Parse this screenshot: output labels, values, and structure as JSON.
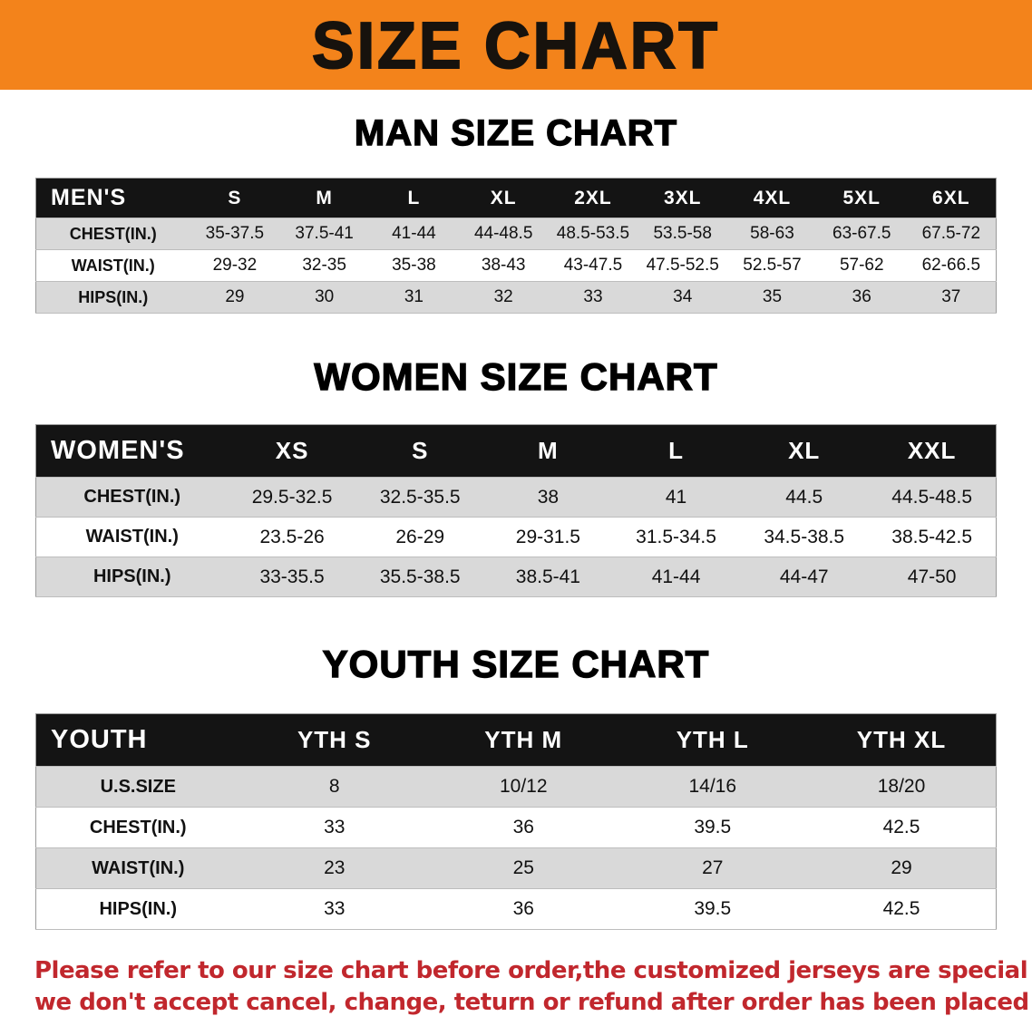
{
  "banner": {
    "title": "SIZE CHART",
    "bg_color": "#F3831B",
    "text_color": "#17120D"
  },
  "chart_data": [
    {
      "type": "table",
      "title": "MAN SIZE CHART",
      "header": [
        "MEN'S",
        "S",
        "M",
        "L",
        "XL",
        "2XL",
        "3XL",
        "4XL",
        "5XL",
        "6XL"
      ],
      "rows": [
        {
          "label": "CHEST(IN.)",
          "values": [
            "35-37.5",
            "37.5-41",
            "41-44",
            "44-48.5",
            "48.5-53.5",
            "53.5-58",
            "58-63",
            "63-67.5",
            "67.5-72"
          ]
        },
        {
          "label": "WAIST(IN.)",
          "values": [
            "29-32",
            "32-35",
            "35-38",
            "38-43",
            "43-47.5",
            "47.5-52.5",
            "52.5-57",
            "57-62",
            "62-66.5"
          ]
        },
        {
          "label": "HIPS(IN.)",
          "values": [
            "29",
            "30",
            "31",
            "32",
            "33",
            "34",
            "35",
            "36",
            "37"
          ]
        }
      ]
    },
    {
      "type": "table",
      "title": "WOMEN SIZE CHART",
      "header": [
        "WOMEN'S",
        "XS",
        "S",
        "M",
        "L",
        "XL",
        "XXL"
      ],
      "rows": [
        {
          "label": "CHEST(IN.)",
          "values": [
            "29.5-32.5",
            "32.5-35.5",
            "38",
            "41",
            "44.5",
            "44.5-48.5"
          ]
        },
        {
          "label": "WAIST(IN.)",
          "values": [
            "23.5-26",
            "26-29",
            "29-31.5",
            "31.5-34.5",
            "34.5-38.5",
            "38.5-42.5"
          ]
        },
        {
          "label": "HIPS(IN.)",
          "values": [
            "33-35.5",
            "35.5-38.5",
            "38.5-41",
            "41-44",
            "44-47",
            "47-50"
          ]
        }
      ]
    },
    {
      "type": "table",
      "title": "YOUTH SIZE CHART",
      "header": [
        "YOUTH",
        "YTH S",
        "YTH M",
        "YTH L",
        "YTH XL"
      ],
      "rows": [
        {
          "label": "U.S.SIZE",
          "values": [
            "8",
            "10/12",
            "14/16",
            "18/20"
          ]
        },
        {
          "label": "CHEST(IN.)",
          "values": [
            "33",
            "36",
            "39.5",
            "42.5"
          ]
        },
        {
          "label": "WAIST(IN.)",
          "values": [
            "23",
            "25",
            "27",
            "29"
          ]
        },
        {
          "label": "HIPS(IN.)",
          "values": [
            "33",
            "36",
            "39.5",
            "42.5"
          ]
        }
      ]
    }
  ],
  "footer": {
    "lines": [
      "Please refer to our size chart before order,the customized jerseys are special products,",
      "we don't accept cancel, change, teturn or refund after order has been placed!"
    ],
    "text_color": "#C1272D"
  },
  "colors": {
    "table_header_bg": "#141414",
    "alt_row_bg": "#D9D9D9"
  }
}
